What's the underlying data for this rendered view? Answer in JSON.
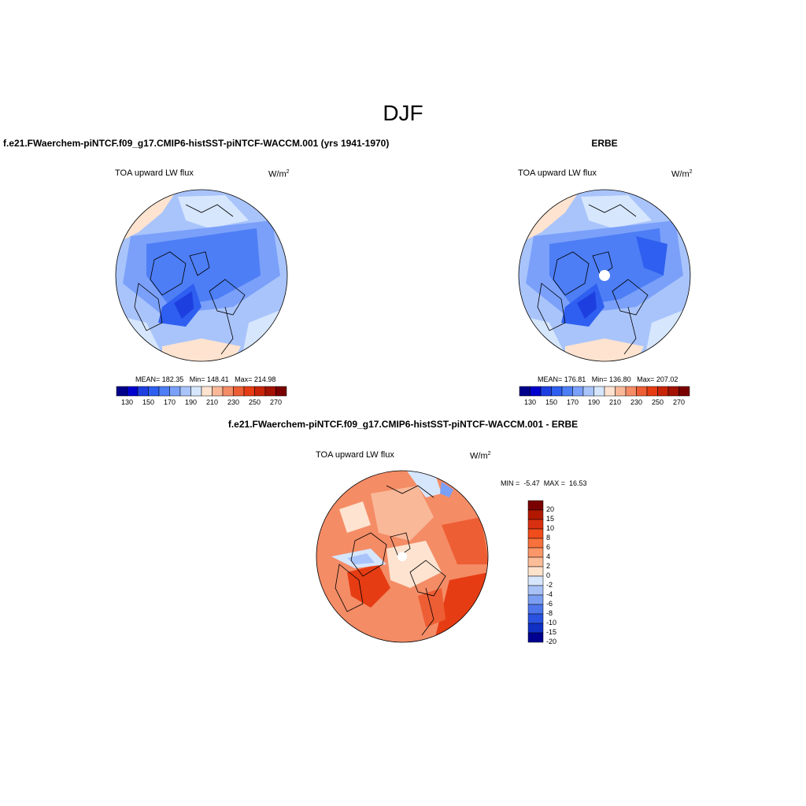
{
  "main_title": "DJF",
  "panels": [
    {
      "title": "f.e21.FWaerchem-piNTCF.f09_g17.CMIP6-histSST-piNTCF-WACCM.001 (yrs 1941-1970)",
      "left_string": "TOA upward LW flux",
      "units": "W/m",
      "units_sup": "2",
      "stats": "MEAN= 182.35   Min= 148.41   Max= 214.98",
      "colorbar_ticks": [
        "130",
        "150",
        "170",
        "190",
        "210",
        "230",
        "250",
        "270"
      ]
    },
    {
      "title": "ERBE",
      "left_string": "TOA upward LW flux",
      "units": "W/m",
      "units_sup": "2",
      "stats": "MEAN= 176.81   Min= 136.80   Max= 207.02",
      "colorbar_ticks": [
        "130",
        "150",
        "170",
        "190",
        "210",
        "230",
        "250",
        "270"
      ]
    },
    {
      "title": "f.e21.FWaerchem-piNTCF.f09_g17.CMIP6-histSST-piNTCF-WACCM.001 - ERBE",
      "left_string": "TOA upward LW flux",
      "units": "W/m",
      "units_sup": "2",
      "stats": "MIN =  -5.47  MAX =  16.53",
      "colorbar_ticks": [
        "20",
        "15",
        "10",
        "8",
        "6",
        "4",
        "2",
        "0",
        "-2",
        "-4",
        "-6",
        "-8",
        "-10",
        "-15",
        "-20"
      ]
    }
  ],
  "colors": {
    "abs_colorbar": [
      "#00008b",
      "#0000cd",
      "#1e3fe0",
      "#2f5ff0",
      "#4d7ef5",
      "#7aa0fa",
      "#a9c4fb",
      "#d6e6fd",
      "#fde3d0",
      "#f9b898",
      "#f48c66",
      "#ee5e34",
      "#e63c14",
      "#c82408",
      "#a31202",
      "#7a0000"
    ],
    "diff_colorbar": [
      "#7a0000",
      "#b21800",
      "#d83010",
      "#f04c1c",
      "#f8703c",
      "#fa9668",
      "#fbbc98",
      "#fde2cc",
      "#d8e6fb",
      "#a8c2f7",
      "#7c9ef2",
      "#4e76ec",
      "#2a52e0",
      "#1030c4",
      "#000090"
    ],
    "map_ocean_abs": "#a9c4fb",
    "map_diff_base": "#f48c66"
  }
}
